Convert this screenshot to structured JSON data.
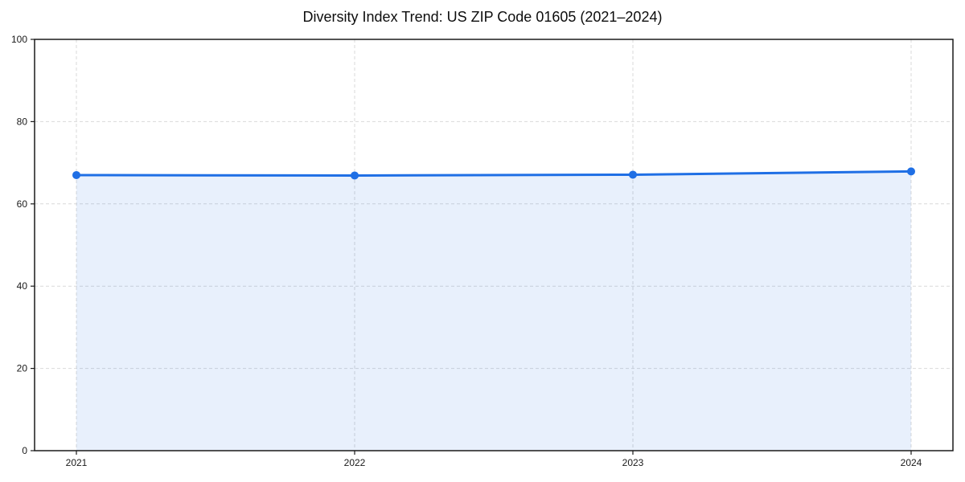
{
  "chart_data": {
    "type": "area",
    "title": "Diversity Index Trend: US ZIP Code 01605 (2021–2024)",
    "categories": [
      "2021",
      "2022",
      "2023",
      "2024"
    ],
    "x": [
      2021,
      2022,
      2023,
      2024
    ],
    "values": [
      67.0,
      66.9,
      67.1,
      67.9
    ],
    "series_name": "Diversity Index",
    "xlabel": "",
    "ylabel": "",
    "ylim": [
      0,
      100
    ],
    "yticks": [
      0,
      20,
      40,
      60,
      80,
      100
    ],
    "grid": true,
    "grid_style": "dashed",
    "legend": "none",
    "marker": "circle",
    "colors": {
      "line": "#1f6fe5",
      "marker": "#1f6fe5",
      "fill": "rgba(31, 111, 229, 0.10)",
      "grid": "#d9d9d9",
      "axis": "#1a1a1a",
      "tick_text": "#1a1a1a",
      "title_text": "#0d0d0d",
      "background": "#ffffff"
    }
  }
}
